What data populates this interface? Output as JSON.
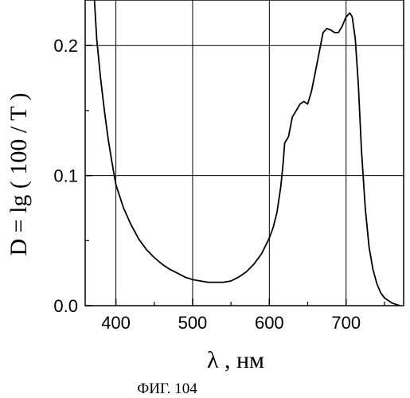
{
  "figure": {
    "caption": "ФИГ. 104"
  },
  "chart_data": {
    "type": "line",
    "title": "",
    "xlabel": "λ , нм",
    "ylabel": "D = lg ( 100 / T )",
    "xlim": [
      360,
      775
    ],
    "ylim": [
      0.0,
      0.235
    ],
    "grid": true,
    "x_ticks": [
      400,
      500,
      600,
      700
    ],
    "x_tick_labels": [
      "400",
      "500",
      "600",
      "700"
    ],
    "y_ticks": [
      0.0,
      0.1,
      0.2
    ],
    "y_tick_labels": [
      "0.0",
      "0.1",
      "0.2"
    ],
    "series": [
      {
        "name": "",
        "color": "#000000",
        "x": [
          372,
          375,
          380,
          385,
          390,
          395,
          400,
          410,
          420,
          430,
          440,
          450,
          460,
          470,
          480,
          490,
          500,
          510,
          520,
          530,
          540,
          550,
          560,
          570,
          580,
          590,
          600,
          605,
          610,
          615,
          618,
          620,
          625,
          630,
          635,
          640,
          645,
          650,
          655,
          660,
          665,
          670,
          675,
          680,
          685,
          690,
          695,
          700,
          705,
          708,
          712,
          716,
          720,
          725,
          730,
          735,
          740,
          745,
          750,
          760,
          770
        ],
        "y": [
          0.235,
          0.205,
          0.175,
          0.15,
          0.128,
          0.11,
          0.093,
          0.075,
          0.062,
          0.051,
          0.043,
          0.037,
          0.032,
          0.028,
          0.025,
          0.022,
          0.02,
          0.019,
          0.018,
          0.018,
          0.018,
          0.019,
          0.022,
          0.026,
          0.032,
          0.04,
          0.052,
          0.06,
          0.072,
          0.092,
          0.11,
          0.125,
          0.13,
          0.145,
          0.15,
          0.155,
          0.157,
          0.155,
          0.165,
          0.18,
          0.195,
          0.21,
          0.213,
          0.212,
          0.21,
          0.21,
          0.215,
          0.222,
          0.225,
          0.222,
          0.205,
          0.17,
          0.12,
          0.075,
          0.045,
          0.028,
          0.017,
          0.01,
          0.006,
          0.002,
          0.0
        ]
      }
    ]
  }
}
